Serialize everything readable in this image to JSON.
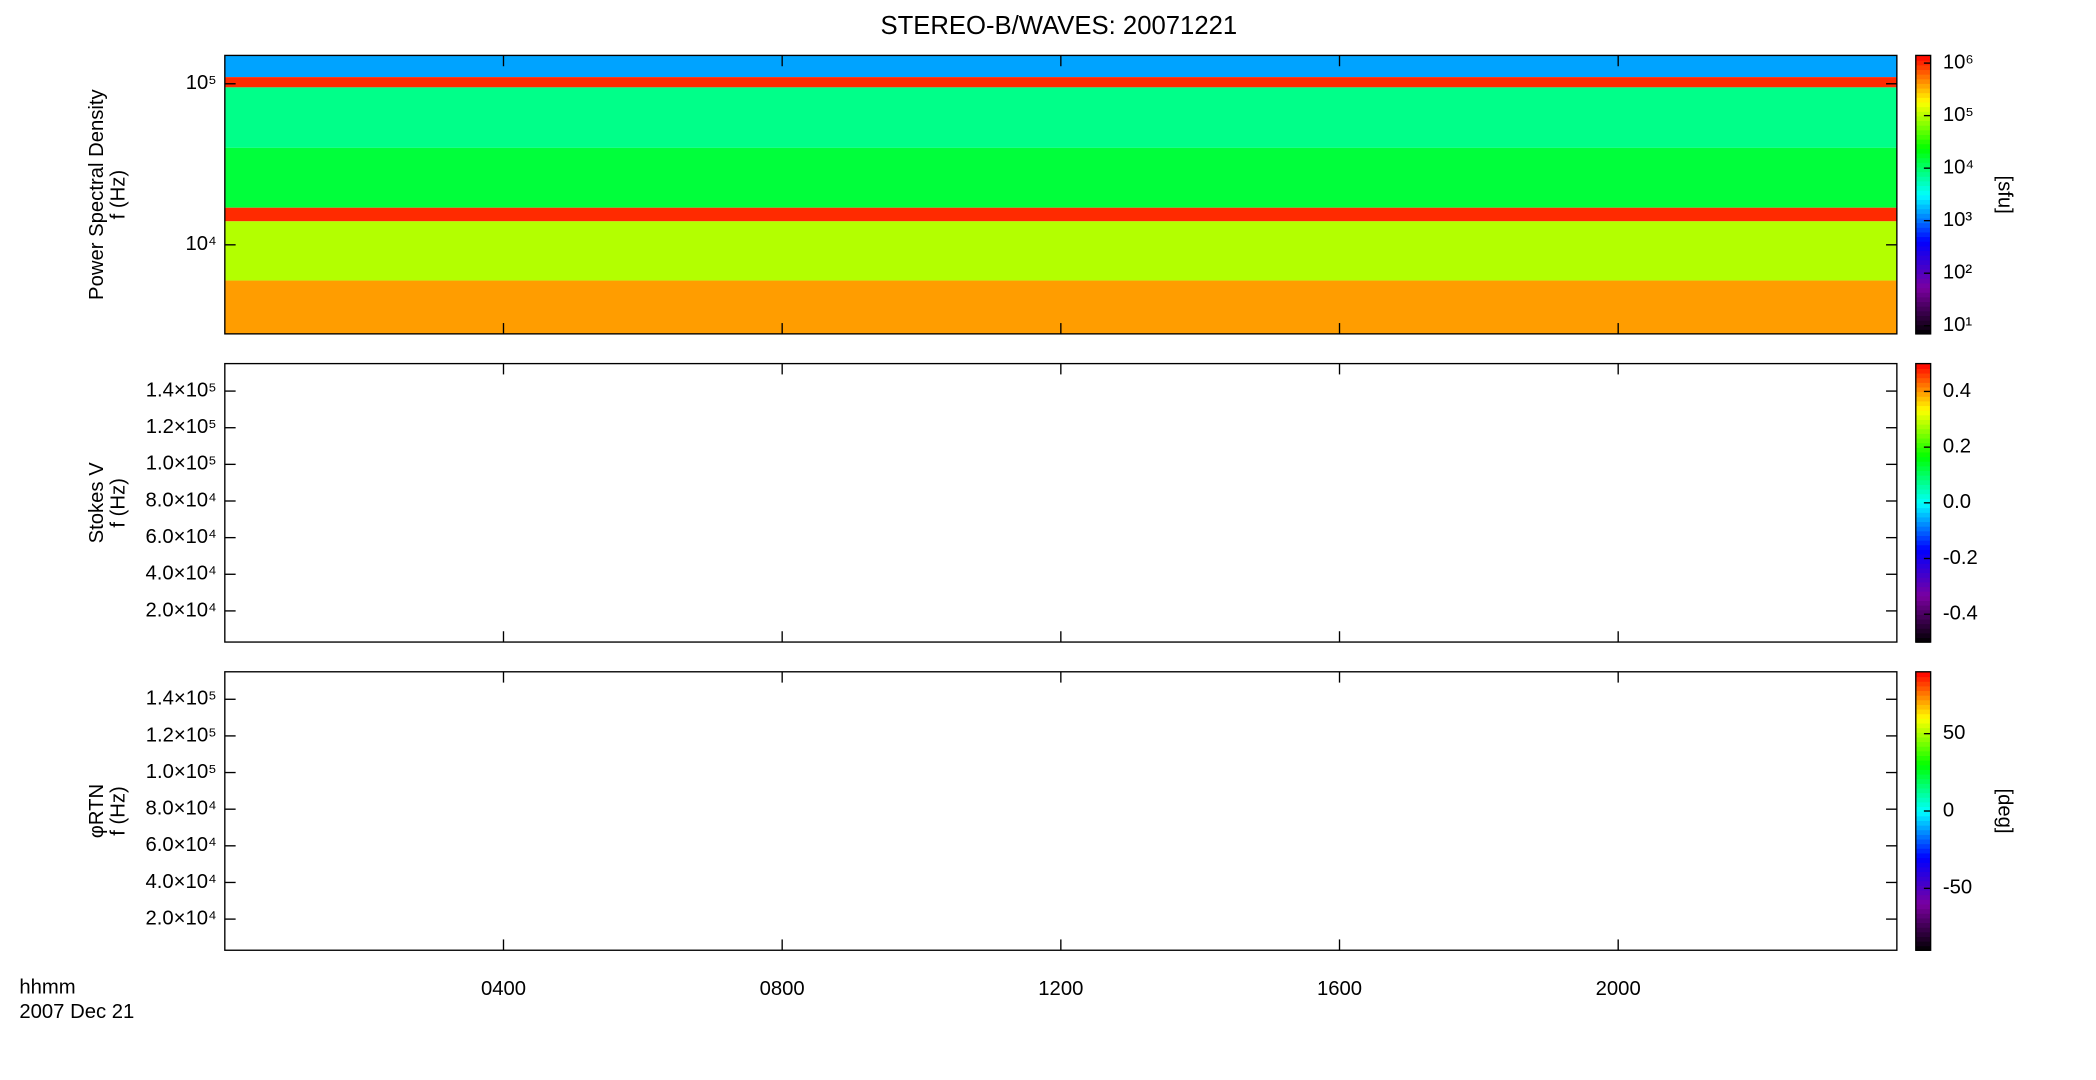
{
  "chart_data": [
    {
      "type": "heatmap",
      "title": "STEREO-B/WAVES: 20071221",
      "ylabel": [
        "Power Spectral Density",
        "f (Hz)"
      ],
      "ylog": true,
      "ylim": [
        2800,
        150000
      ],
      "yticks": [
        {
          "value": 100000,
          "label": "10⁵"
        },
        {
          "value": 10000,
          "label": "10⁴"
        }
      ],
      "xlim": [
        0,
        24
      ],
      "clog": true,
      "clim": [
        7,
        1400000
      ],
      "cticks": [
        {
          "value": 1000000,
          "label": "10⁶"
        },
        {
          "value": 100000,
          "label": "10⁵"
        },
        {
          "value": 10000,
          "label": "10⁴"
        },
        {
          "value": 1000,
          "label": "10³"
        },
        {
          "value": 100,
          "label": "10²"
        },
        {
          "value": 10,
          "label": "10¹"
        }
      ],
      "clabel": "[sfu]",
      "colormap": [
        "#000000",
        "#7a00a0",
        "#0000ff",
        "#00ffff",
        "#00ff00",
        "#ffff00",
        "#ff0000"
      ],
      "bands": [
        {
          "f": [
            110000,
            150000
          ],
          "power": 1500
        },
        {
          "f": [
            95000,
            110000
          ],
          "power": 1000000
        },
        {
          "f": [
            40000,
            95000
          ],
          "power": 8000
        },
        {
          "f": [
            17000,
            40000
          ],
          "power": 15000
        },
        {
          "f": [
            14000,
            17000
          ],
          "power": 1000000
        },
        {
          "f": [
            6000,
            14000
          ],
          "power": 100000
        },
        {
          "f": [
            2800,
            6000
          ],
          "power": 400000
        }
      ]
    },
    {
      "type": "heatmap",
      "ylabel": [
        "Stokes V",
        "f (Hz)"
      ],
      "ylog": false,
      "ylim": [
        3000,
        155000
      ],
      "yticks": [
        {
          "value": 140000,
          "label": "1.4×10⁵"
        },
        {
          "value": 120000,
          "label": "1.2×10⁵"
        },
        {
          "value": 100000,
          "label": "1.0×10⁵"
        },
        {
          "value": 80000,
          "label": "8.0×10⁴"
        },
        {
          "value": 60000,
          "label": "6.0×10⁴"
        },
        {
          "value": 40000,
          "label": "4.0×10⁴"
        },
        {
          "value": 20000,
          "label": "2.0×10⁴"
        }
      ],
      "xlim": [
        0,
        24
      ],
      "clog": false,
      "clim": [
        -0.5,
        0.5
      ],
      "cticks": [
        {
          "value": 0.4,
          "label": "0.4"
        },
        {
          "value": 0.2,
          "label": "0.2"
        },
        {
          "value": 0,
          "label": "0.0"
        },
        {
          "value": -0.2,
          "label": "-0.2"
        },
        {
          "value": -0.4,
          "label": "-0.4"
        }
      ],
      "colormap": [
        "#000000",
        "#7a00a0",
        "#0000ff",
        "#00ffff",
        "#00ff00",
        "#ffff00",
        "#ff0000"
      ],
      "bands": []
    },
    {
      "type": "heatmap",
      "ylabel": [
        "φRTN",
        "f (Hz)"
      ],
      "ylog": false,
      "ylim": [
        3000,
        155000
      ],
      "yticks": [
        {
          "value": 140000,
          "label": "1.4×10⁵"
        },
        {
          "value": 120000,
          "label": "1.2×10⁵"
        },
        {
          "value": 100000,
          "label": "1.0×10⁵"
        },
        {
          "value": 80000,
          "label": "8.0×10⁴"
        },
        {
          "value": 60000,
          "label": "6.0×10⁴"
        },
        {
          "value": 40000,
          "label": "4.0×10⁴"
        },
        {
          "value": 20000,
          "label": "2.0×10⁴"
        }
      ],
      "xlim": [
        0,
        24
      ],
      "xticks": [
        {
          "value": 4,
          "label": "0400"
        },
        {
          "value": 8,
          "label": "0800"
        },
        {
          "value": 12,
          "label": "1200"
        },
        {
          "value": 16,
          "label": "1600"
        },
        {
          "value": 20,
          "label": "2000"
        }
      ],
      "xlabel": [
        "hhmm",
        "2007 Dec 21"
      ],
      "clog": false,
      "clim": [
        -90,
        90
      ],
      "cticks": [
        50,
        0,
        -50
      ],
      "clabel": "[deg]",
      "colormap": [
        "#000000",
        "#7a00a0",
        "#0000ff",
        "#00ffff",
        "#00ff00",
        "#ffff00",
        "#ff0000"
      ],
      "bands": []
    }
  ]
}
